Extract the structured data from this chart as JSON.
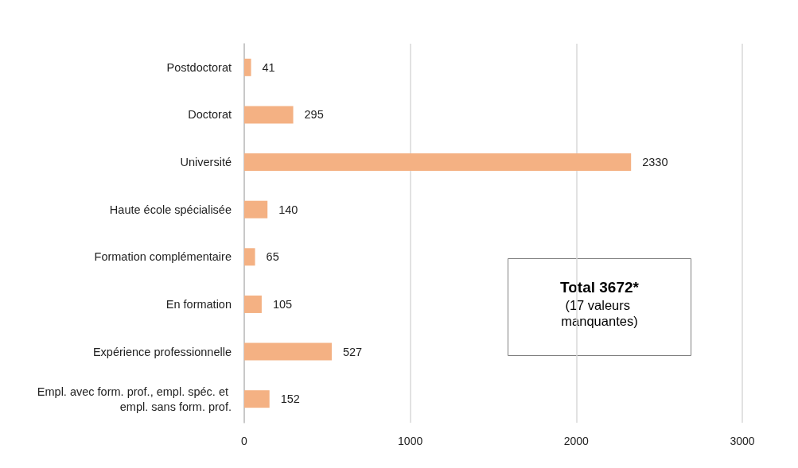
{
  "chart_data": {
    "type": "bar",
    "orientation": "horizontal",
    "categories": [
      "Postdoctorat",
      "Doctorat",
      "Université",
      "Haute école spécialisée",
      "Formation complémentaire",
      "En formation",
      "Expérience professionnelle",
      "Empl. avec form. prof., empl. spéc. et empl. sans form. prof."
    ],
    "values": [
      41,
      295,
      2330,
      140,
      65,
      105,
      527,
      152
    ],
    "color": "#f4b183",
    "xlim": [
      0,
      3000
    ],
    "xticks": [
      0,
      1000,
      2000,
      3000
    ],
    "grid": "x",
    "data_labels": true,
    "annotations": [
      "Total 3672*",
      "(17 valeurs manquantes)"
    ]
  }
}
